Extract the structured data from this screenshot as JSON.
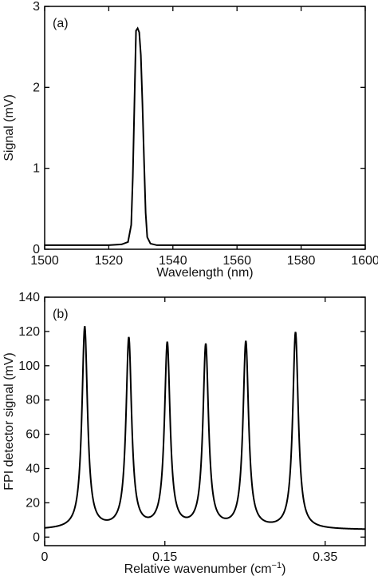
{
  "chart_data": [
    {
      "type": "line",
      "panel_label": "(a)",
      "xlabel": "Wavelength (nm)",
      "ylabel": "Signal (mV)",
      "xlim": [
        1500,
        1600
      ],
      "ylim": [
        0,
        3
      ],
      "xticks": [
        1500,
        1520,
        1540,
        1560,
        1580,
        1600
      ],
      "yticks": [
        0,
        1,
        2,
        3
      ],
      "grid": false,
      "series": [
        {
          "color": "#000000",
          "x": [
            1500,
            1505,
            1510,
            1515,
            1520,
            1524,
            1526,
            1527,
            1527.5,
            1528,
            1528.5,
            1529,
            1529.5,
            1530,
            1530.5,
            1531,
            1531.5,
            1532,
            1533,
            1535,
            1540,
            1550,
            1560,
            1570,
            1580,
            1590,
            1600
          ],
          "y": [
            0.05,
            0.05,
            0.05,
            0.05,
            0.05,
            0.06,
            0.09,
            0.3,
            0.9,
            1.8,
            2.7,
            2.73,
            2.68,
            2.4,
            1.8,
            1.1,
            0.45,
            0.15,
            0.07,
            0.05,
            0.05,
            0.05,
            0.05,
            0.05,
            0.05,
            0.05,
            0.05
          ]
        }
      ]
    },
    {
      "type": "line",
      "panel_label": "(b)",
      "xlabel": "Relative wavenumber (cm",
      "xlabel_superscript": "−1",
      "xlabel_suffix": ")",
      "ylabel": "FPI detector signal (mV)",
      "xlim": [
        0,
        0.4
      ],
      "ylim": [
        -5,
        140
      ],
      "xticks": [
        0,
        0.15,
        0.35
      ],
      "xtick_labels": [
        "0",
        "0.15",
        "0.35"
      ],
      "yticks": [
        0,
        20,
        40,
        60,
        80,
        100,
        120,
        140
      ],
      "grid": false,
      "series": [
        {
          "color": "#000000",
          "baseline": 4.2,
          "x_start": 0.0,
          "peaks": [
            {
              "x": 0.05,
              "y": 122
            },
            {
              "x": 0.105,
              "y": 115
            },
            {
              "x": 0.153,
              "y": 112
            },
            {
              "x": 0.201,
              "y": 111
            },
            {
              "x": 0.251,
              "y": 113
            },
            {
              "x": 0.313,
              "y": 119
            }
          ]
        }
      ]
    }
  ]
}
